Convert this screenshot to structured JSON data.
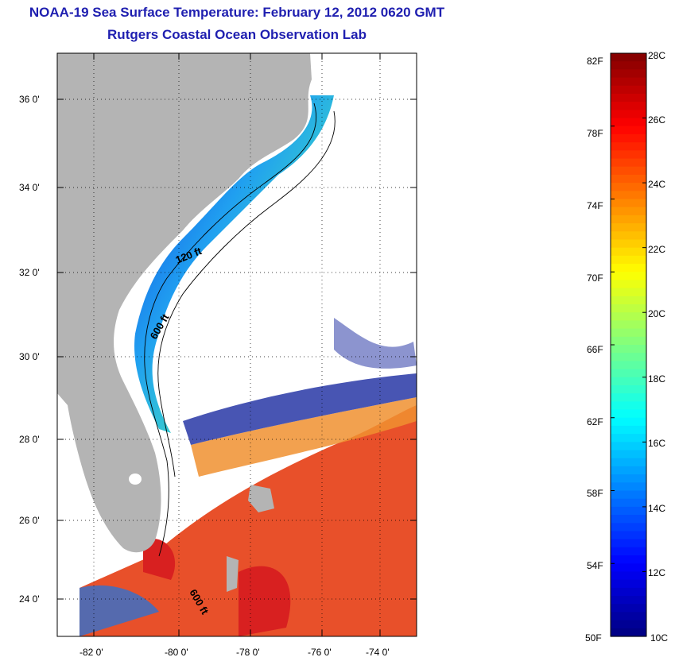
{
  "header": {
    "title": "NOAA-19 Sea Surface Temperature:  February 12, 2012 0620 GMT",
    "subtitle": "Rutgers Coastal Ocean Observation Lab"
  },
  "map": {
    "lat_labels": [
      "36 0'",
      "34 0'",
      "32 0'",
      "30 0'",
      "28 0'",
      "26 0'",
      "24 0'"
    ],
    "lon_labels": [
      "-82 0'",
      "-80 0'",
      "-78 0'",
      "-76 0'",
      "-74 0'"
    ],
    "contour_labels": [
      "120 ft",
      "600 ft",
      "600 ft"
    ],
    "land_color": "#b4b4b4",
    "gridline_style": "dotted"
  },
  "colorbar": {
    "fahrenheit_labels": [
      "82F",
      "78F",
      "74F",
      "70F",
      "66F",
      "62F",
      "58F",
      "54F",
      "50F"
    ],
    "celsius_labels": [
      "28C",
      "26C",
      "24C",
      "22C",
      "20C",
      "18C",
      "16C",
      "14C",
      "12C",
      "10C"
    ],
    "colormap": "jet"
  }
}
